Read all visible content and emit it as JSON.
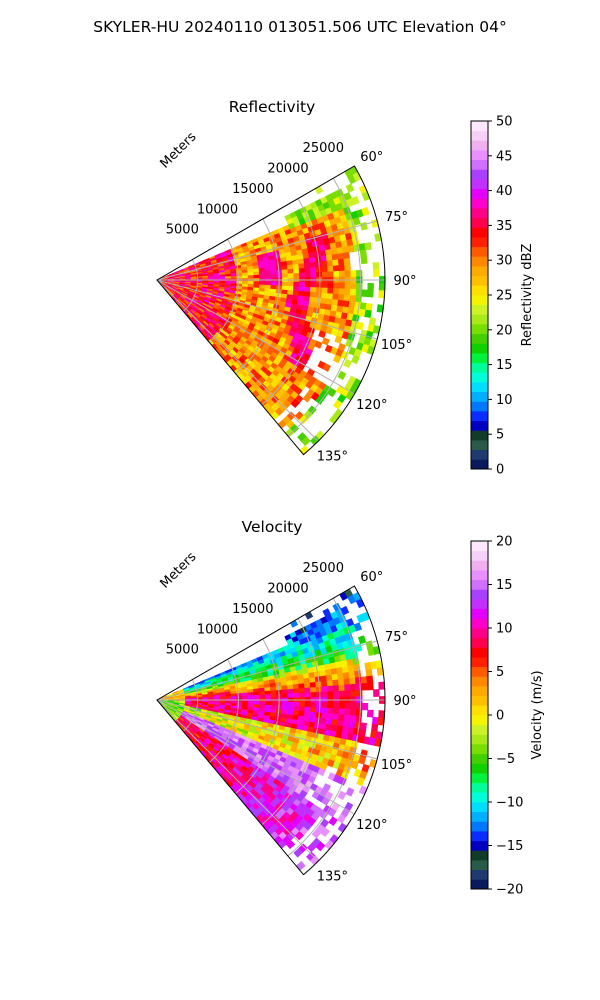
{
  "suptitle": "SKYLER-HU  20240110  013051.506 UTC Elevation 04°",
  "chart_data": [
    {
      "type": "heatmap",
      "title": "Reflectivity",
      "projection": "polar-sector",
      "radial_label": "Meters",
      "radial_ticks": [
        "5000",
        "10000",
        "15000",
        "20000",
        "25000"
      ],
      "radial_values": [
        5000,
        10000,
        15000,
        20000,
        25000
      ],
      "rmax": 28000,
      "theta_range_deg": [
        60,
        140
      ],
      "angle_ticks": [
        "60°",
        "75°",
        "90°",
        "105°",
        "120°",
        "135°"
      ],
      "angle_values": [
        60,
        75,
        90,
        105,
        120,
        135
      ],
      "grid": true,
      "field": "reflectivity",
      "features": {
        "band_radius_fraction": 0.68,
        "band_center_bearing": 97,
        "near_core_level": 36,
        "background_level": 29,
        "edge_level": 21
      },
      "colorbar": {
        "label": "Reflectivity dBZ",
        "ticks": [
          "0",
          "5",
          "10",
          "15",
          "20",
          "25",
          "30",
          "35",
          "40",
          "45",
          "50"
        ],
        "vmin": 0,
        "vmax": 50,
        "colors": [
          "#0a1a5c",
          "#1e3a6e",
          "#2a5a4a",
          "#123c2a",
          "#0000c0",
          "#0a2cff",
          "#0078ff",
          "#00b0ff",
          "#00ddff",
          "#00ffd8",
          "#00ff9a",
          "#00f23c",
          "#10d000",
          "#44d000",
          "#7add00",
          "#a8ea18",
          "#ccf226",
          "#f4f400",
          "#ffe000",
          "#ffc000",
          "#ffaa00",
          "#ff8800",
          "#ff5a00",
          "#ff2000",
          "#ff0000",
          "#ff0050",
          "#ff0088",
          "#ff00cc",
          "#e400ff",
          "#c030ff",
          "#aa40ff",
          "#d070ff",
          "#e890ff",
          "#f0b0f0",
          "#f6d0f6",
          "#fde8fd"
        ]
      }
    },
    {
      "type": "heatmap",
      "title": "Velocity",
      "projection": "polar-sector",
      "radial_label": "Meters",
      "radial_ticks": [
        "5000",
        "10000",
        "15000",
        "20000",
        "25000"
      ],
      "radial_values": [
        5000,
        10000,
        15000,
        20000,
        25000
      ],
      "rmax": 28000,
      "theta_range_deg": [
        60,
        140
      ],
      "angle_ticks": [
        "60°",
        "75°",
        "90°",
        "105°",
        "120°",
        "135°"
      ],
      "angle_values": [
        60,
        75,
        90,
        105,
        120,
        135
      ],
      "grid": true,
      "field": "velocity",
      "features": {
        "north_flank_level": -9,
        "center_level": 9,
        "south_flank_level": 15,
        "far_south_level": 11
      },
      "colorbar": {
        "label": "Velocity (m/s)",
        "ticks": [
          "−20",
          "−15",
          "−10",
          "−5",
          "0",
          "5",
          "10",
          "15",
          "20"
        ],
        "vmin": -20,
        "vmax": 20,
        "colors": [
          "#0a1a5c",
          "#1e3a6e",
          "#2a5a4a",
          "#123c2a",
          "#0000c0",
          "#0a2cff",
          "#0078ff",
          "#00b0ff",
          "#00ddff",
          "#00ffd8",
          "#00ff9a",
          "#00f23c",
          "#10d000",
          "#44d000",
          "#7add00",
          "#a8ea18",
          "#ccf226",
          "#f4f400",
          "#ffe000",
          "#ffc000",
          "#ffaa00",
          "#ff8800",
          "#ff5a00",
          "#ff2000",
          "#ff0000",
          "#ff0050",
          "#ff0088",
          "#ff00cc",
          "#e400ff",
          "#c030ff",
          "#aa40ff",
          "#d070ff",
          "#e890ff",
          "#f0b0f0",
          "#f6d0f6",
          "#fde8fd"
        ]
      }
    }
  ]
}
